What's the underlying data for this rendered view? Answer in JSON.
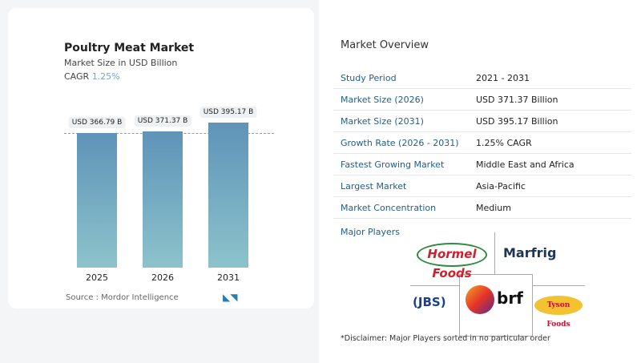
{
  "chart_data": {
    "type": "bar",
    "title": "Poultry Meat Market",
    "subtitle": "Market Size in USD Billion",
    "cagr_label": "CAGR",
    "cagr_value": "1.25%",
    "categories": [
      "2025",
      "2026",
      "2031"
    ],
    "values": [
      366.79,
      371.37,
      395.17
    ],
    "data_labels": [
      "USD 366.79 B",
      "USD 371.37 B",
      "USD 395.17 B"
    ],
    "ylim": [
      0,
      395.17
    ],
    "bar_color": "#5f93b8"
  },
  "source": "Source :  Mordor Intelligence",
  "overview": {
    "title": "Market Overview",
    "rows": [
      {
        "k": "Study Period",
        "v": "2021 - 2031"
      },
      {
        "k": "Market Size (2026)",
        "v": "USD 371.37 Billion"
      },
      {
        "k": "Market Size (2031)",
        "v": "USD 395.17 Billion"
      },
      {
        "k": "Growth Rate (2026 - 2031)",
        "v": "1.25% CAGR"
      },
      {
        "k": "Fastest Growing Market",
        "v": "Middle East and Africa"
      },
      {
        "k": "Largest Market",
        "v": "Asia-Pacific"
      },
      {
        "k": "Market Concentration",
        "v": "Medium"
      }
    ]
  },
  "major_players_label": "Major Players",
  "players": [
    "Hormel Foods",
    "Marfrig",
    "JBS",
    "brf",
    "Tyson Foods"
  ],
  "disclaimer": "*Disclaimer: Major Players sorted in no particular order"
}
